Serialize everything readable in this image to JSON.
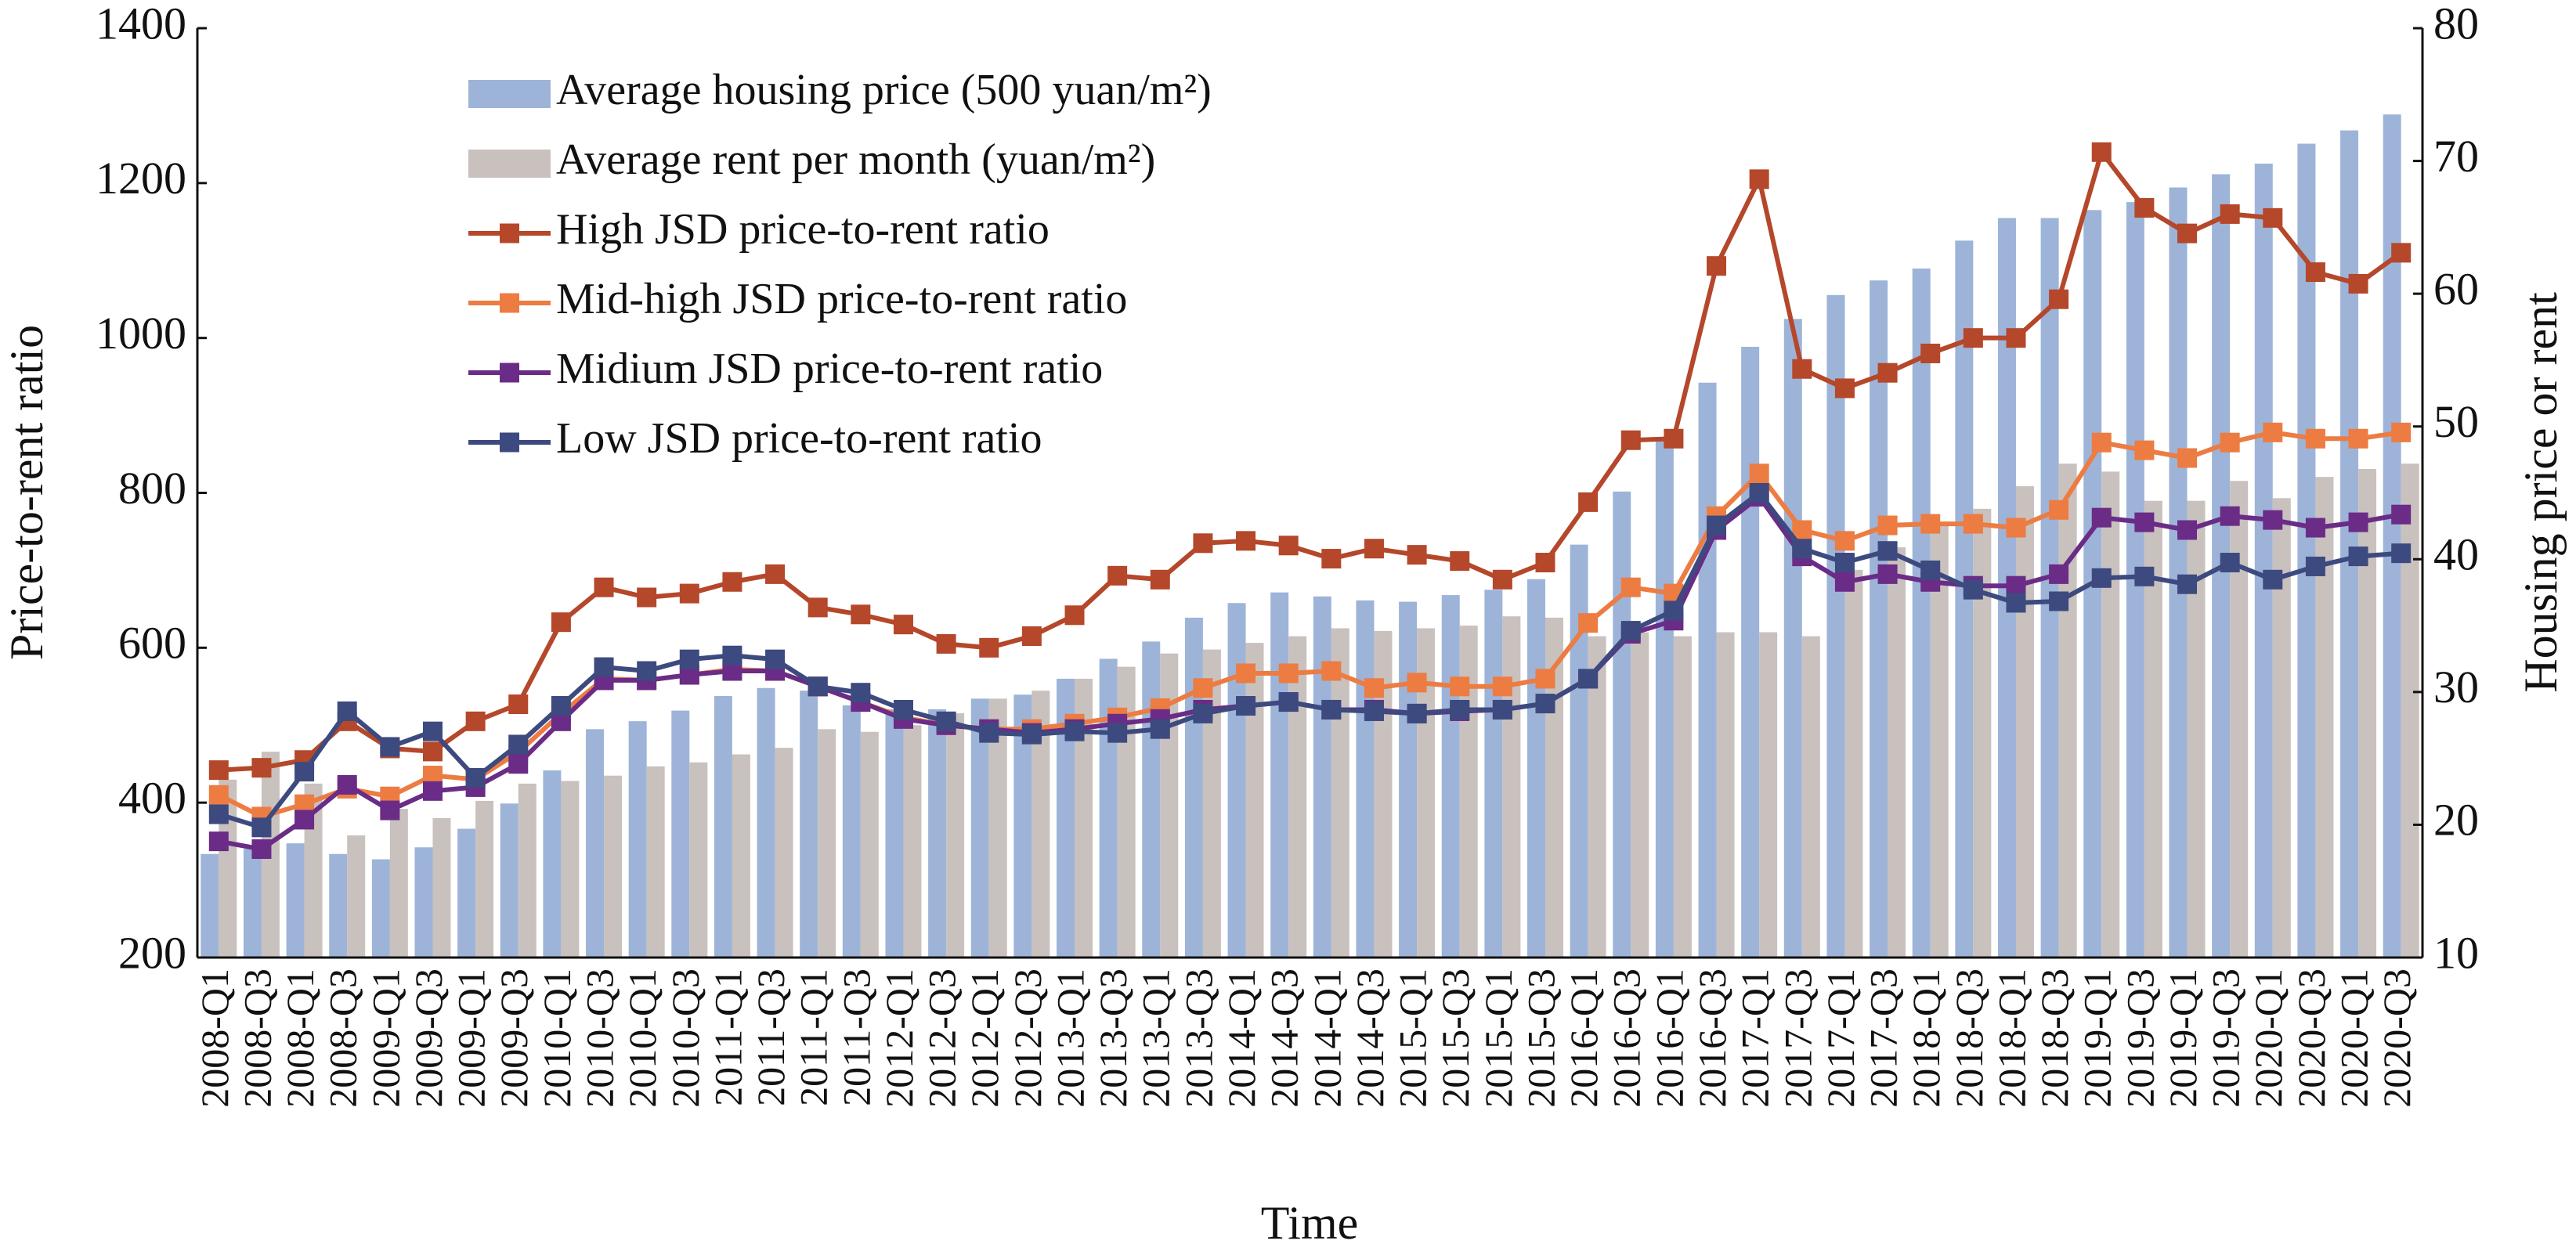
{
  "chart_data": {
    "type": "bar",
    "x_label": "Time",
    "y_label": "Price-to-rent ratio",
    "y2_label": "Housing price or rent",
    "categories": [
      "2008-Q1",
      "2008-Q3",
      "2008-Q1",
      "2008-Q3",
      "2009-Q1",
      "2009-Q3",
      "2009-Q1",
      "2009-Q3",
      "2010-Q1",
      "2010-Q3",
      "2010-Q1",
      "2010-Q3",
      "2011-Q1",
      "2011-Q3",
      "2011-Q1",
      "2011-Q3",
      "2012-Q1",
      "2012-Q3",
      "2012-Q1",
      "2012-Q3",
      "2013-Q1",
      "2013-Q3",
      "2013-Q1",
      "2013-Q3",
      "2014-Q1",
      "2014-Q3",
      "2014-Q1",
      "2014-Q3",
      "2015-Q1",
      "2015-Q3",
      "2015-Q1",
      "2015-Q3",
      "2016-Q1",
      "2016-Q3",
      "2016-Q1",
      "2016-Q3",
      "2017-Q1",
      "2017-Q3",
      "2017-Q1",
      "2017-Q3",
      "2018-Q1",
      "2018-Q3",
      "2018-Q1",
      "2018-Q3",
      "2019-Q1",
      "2019-Q3",
      "2019-Q1",
      "2019-Q3",
      "2020-Q1",
      "2020-Q3",
      "2020-Q1",
      "2020-Q3"
    ],
    "ylim": [
      200,
      1400
    ],
    "yticks": [
      200,
      400,
      600,
      800,
      1000,
      1200,
      1400
    ],
    "y2lim": [
      10,
      80
    ],
    "y2ticks": [
      10,
      20,
      30,
      40,
      50,
      60,
      70,
      80
    ],
    "legend": "upper left",
    "series": [
      {
        "name": "Average housing price (500 yuan/m²)",
        "type": "bar",
        "axis": "y2",
        "color": "#9db4d8",
        "values": [
          17.8,
          18.2,
          18.6,
          17.8,
          17.4,
          18.3,
          19.7,
          21.6,
          24.1,
          27.2,
          27.8,
          28.6,
          29.7,
          30.3,
          30.1,
          29.0,
          28.7,
          28.7,
          29.5,
          29.8,
          31.0,
          32.5,
          33.8,
          35.6,
          36.7,
          37.5,
          37.2,
          36.9,
          36.8,
          37.3,
          37.7,
          38.5,
          41.1,
          45.1,
          49.1,
          53.3,
          56.0,
          58.1,
          59.9,
          61.0,
          61.9,
          64.0,
          65.7,
          65.7,
          66.3,
          66.9,
          68.0,
          69.0,
          69.8,
          71.3,
          72.3,
          73.5
        ]
      },
      {
        "name": "Average rent per month (yuan/m²)",
        "type": "bar",
        "axis": "y2",
        "color": "#c9c1be",
        "values": [
          23.4,
          25.5,
          23.1,
          19.2,
          21.2,
          20.5,
          21.8,
          23.1,
          23.3,
          23.7,
          24.4,
          24.7,
          25.3,
          25.8,
          27.2,
          27.0,
          27.5,
          28.4,
          29.5,
          30.1,
          31.0,
          31.9,
          32.9,
          33.2,
          33.7,
          34.2,
          34.8,
          34.6,
          34.8,
          35.0,
          35.7,
          35.6,
          34.2,
          34.5,
          34.2,
          34.5,
          34.5,
          34.2,
          39.2,
          40.9,
          42.7,
          43.8,
          45.5,
          47.2,
          46.6,
          44.4,
          44.4,
          45.9,
          44.6,
          46.2,
          46.8,
          47.2
        ]
      },
      {
        "name": "High JSD price-to-rent ratio",
        "type": "line",
        "color": "#b5472a",
        "values": [
          442,
          445,
          455,
          505,
          470,
          466,
          505,
          527,
          633,
          678,
          665,
          670,
          685,
          695,
          652,
          643,
          630,
          605,
          600,
          615,
          642,
          693,
          688,
          735,
          738,
          732,
          715,
          728,
          720,
          712,
          688,
          710,
          788,
          868,
          870,
          1093,
          1205,
          960,
          935,
          955,
          980,
          1000,
          1000,
          1050,
          1240,
          1168,
          1135,
          1160,
          1155,
          1085,
          1070,
          1110
        ]
      },
      {
        "name": "Mid-high JSD price-to-rent ratio",
        "type": "line",
        "color": "#ec7c42",
        "values": [
          410,
          382,
          398,
          418,
          408,
          435,
          430,
          465,
          515,
          560,
          558,
          565,
          572,
          570,
          550,
          530,
          510,
          500,
          495,
          495,
          502,
          510,
          522,
          548,
          567,
          567,
          570,
          548,
          555,
          550,
          550,
          560,
          632,
          678,
          670,
          770,
          825,
          752,
          738,
          758,
          760,
          760,
          755,
          778,
          865,
          855,
          845,
          865,
          878,
          870,
          870,
          878
        ]
      },
      {
        "name": "Midium JSD price-to-rent ratio",
        "type": "line",
        "color": "#6a2c86",
        "values": [
          350,
          340,
          378,
          423,
          390,
          415,
          420,
          450,
          505,
          558,
          558,
          565,
          570,
          570,
          550,
          530,
          508,
          500,
          495,
          490,
          495,
          502,
          508,
          520,
          525,
          530,
          520,
          520,
          515,
          518,
          520,
          528,
          560,
          618,
          635,
          752,
          795,
          718,
          685,
          695,
          685,
          680,
          680,
          695,
          768,
          762,
          752,
          770,
          765,
          755,
          762,
          772
        ]
      },
      {
        "name": "Low JSD price-to-rent ratio",
        "type": "line",
        "color": "#3d4a7f",
        "values": [
          385,
          368,
          440,
          518,
          472,
          492,
          432,
          475,
          525,
          575,
          570,
          585,
          590,
          585,
          550,
          542,
          520,
          505,
          490,
          488,
          492,
          490,
          495,
          515,
          525,
          530,
          520,
          518,
          515,
          520,
          520,
          528,
          560,
          622,
          648,
          758,
          800,
          728,
          710,
          725,
          700,
          675,
          658,
          660,
          690,
          692,
          682,
          710,
          688,
          705,
          718,
          722
        ]
      }
    ]
  }
}
